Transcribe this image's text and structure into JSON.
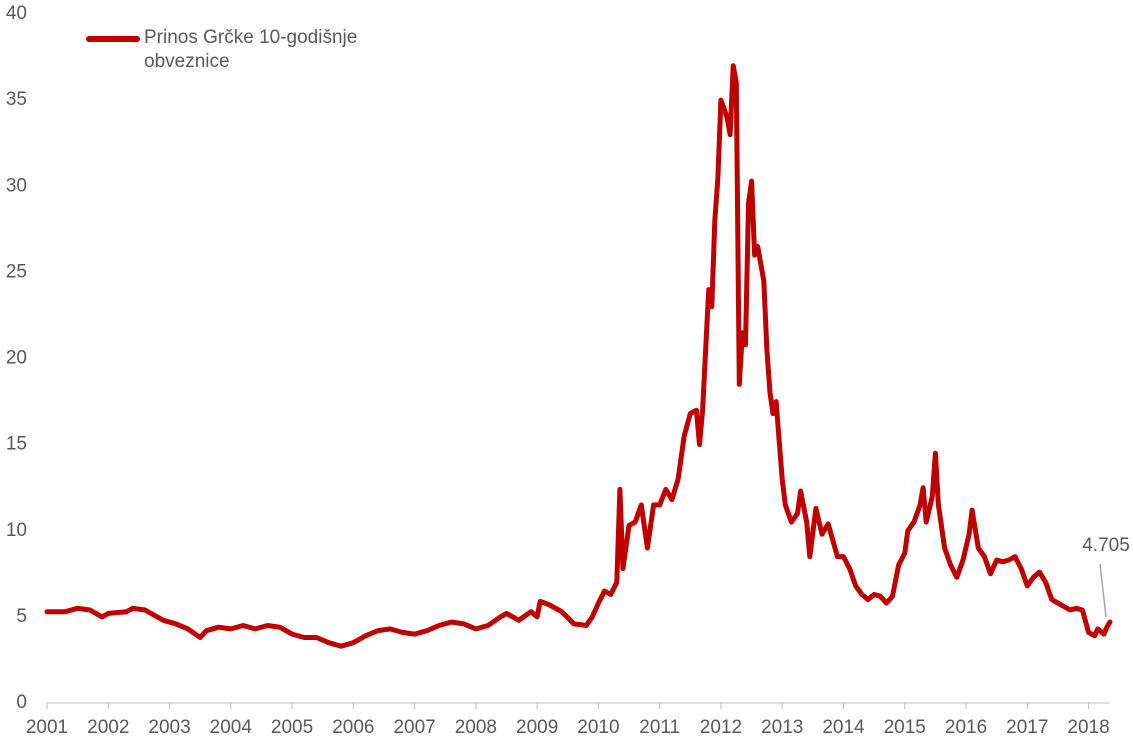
{
  "chart_data": {
    "type": "line",
    "legend": "top-left",
    "annotation": "4.705",
    "xlim": [
      2001,
      2018.35
    ],
    "xticks": [
      2001,
      2002,
      2003,
      2004,
      2005,
      2006,
      2007,
      2008,
      2009,
      2010,
      2011,
      2012,
      2013,
      2014,
      2015,
      2016,
      2017,
      2018
    ],
    "ylim": [
      0,
      40
    ],
    "yticks": [
      0,
      5,
      10,
      15,
      20,
      25,
      30,
      35,
      40
    ],
    "grid": false,
    "x": [
      2001.0,
      2001.3,
      2001.5,
      2001.7,
      2001.9,
      2002.0,
      2002.3,
      2002.4,
      2002.6,
      2002.8,
      2002.9,
      2003.1,
      2003.3,
      2003.5,
      2003.6,
      2003.8,
      2004.0,
      2004.2,
      2004.4,
      2004.6,
      2004.8,
      2005.0,
      2005.2,
      2005.4,
      2005.6,
      2005.8,
      2006.0,
      2006.2,
      2006.4,
      2006.6,
      2006.8,
      2007.0,
      2007.2,
      2007.4,
      2007.6,
      2007.8,
      2008.0,
      2008.2,
      2008.4,
      2008.5,
      2008.7,
      2008.9,
      2009.0,
      2009.05,
      2009.2,
      2009.4,
      2009.6,
      2009.8,
      2009.9,
      2010.0,
      2010.1,
      2010.2,
      2010.3,
      2010.35,
      2010.4,
      2010.5,
      2010.6,
      2010.7,
      2010.8,
      2010.9,
      2011.0,
      2011.1,
      2011.2,
      2011.3,
      2011.4,
      2011.5,
      2011.6,
      2011.65,
      2011.7,
      2011.8,
      2011.85,
      2011.9,
      2011.95,
      2012.0,
      2012.1,
      2012.15,
      2012.2,
      2012.25,
      2012.3,
      2012.35,
      2012.4,
      2012.45,
      2012.5,
      2012.55,
      2012.6,
      2012.7,
      2012.75,
      2012.8,
      2012.85,
      2012.9,
      2013.0,
      2013.05,
      2013.15,
      2013.25,
      2013.3,
      2013.4,
      2013.45,
      2013.55,
      2013.65,
      2013.75,
      2013.9,
      2014.0,
      2014.1,
      2014.2,
      2014.3,
      2014.4,
      2014.5,
      2014.6,
      2014.7,
      2014.8,
      2014.9,
      2015.0,
      2015.05,
      2015.15,
      2015.25,
      2015.3,
      2015.35,
      2015.45,
      2015.5,
      2015.55,
      2015.65,
      2015.75,
      2015.85,
      2015.95,
      2016.05,
      2016.1,
      2016.2,
      2016.3,
      2016.4,
      2016.5,
      2016.6,
      2016.7,
      2016.8,
      2016.9,
      2017.0,
      2017.1,
      2017.2,
      2017.3,
      2017.4,
      2017.5,
      2017.7,
      2017.8,
      2017.9,
      2018.0,
      2018.1,
      2018.15,
      2018.25,
      2018.3,
      2018.35
    ],
    "series": [
      {
        "name": "Prinos Grčke 10-godišnje obveznice",
        "color": "#c00000",
        "values": [
          5.3,
          5.3,
          5.5,
          5.4,
          5.0,
          5.2,
          5.3,
          5.5,
          5.4,
          5.0,
          4.8,
          4.6,
          4.3,
          3.8,
          4.2,
          4.4,
          4.3,
          4.5,
          4.3,
          4.5,
          4.4,
          4.0,
          3.8,
          3.8,
          3.5,
          3.3,
          3.5,
          3.9,
          4.2,
          4.3,
          4.1,
          4.0,
          4.2,
          4.5,
          4.7,
          4.6,
          4.3,
          4.5,
          5.0,
          5.2,
          4.8,
          5.3,
          5.0,
          5.9,
          5.7,
          5.3,
          4.6,
          4.5,
          5.0,
          5.8,
          6.5,
          6.3,
          7.0,
          12.4,
          7.8,
          10.3,
          10.5,
          11.5,
          9.0,
          11.5,
          11.5,
          12.4,
          11.8,
          13.0,
          15.5,
          16.8,
          17.0,
          15.0,
          17.0,
          24.0,
          23.0,
          28.0,
          30.5,
          35.0,
          34.0,
          33.0,
          37.0,
          36.0,
          18.5,
          21.5,
          20.8,
          29.0,
          30.3,
          26.0,
          26.5,
          24.5,
          20.5,
          18.0,
          16.8,
          17.5,
          13.0,
          11.5,
          10.5,
          11.0,
          12.3,
          10.5,
          8.5,
          11.3,
          9.8,
          10.4,
          8.5,
          8.5,
          7.8,
          6.8,
          6.3,
          6.0,
          6.3,
          6.2,
          5.8,
          6.2,
          8.0,
          8.7,
          10.0,
          10.5,
          11.5,
          12.5,
          10.5,
          12.0,
          14.5,
          11.5,
          9.0,
          8.0,
          7.3,
          8.3,
          9.8,
          11.2,
          9.0,
          8.5,
          7.5,
          8.3,
          8.2,
          8.3,
          8.5,
          7.8,
          6.8,
          7.3,
          7.6,
          7.0,
          6.0,
          5.8,
          5.4,
          5.5,
          5.4,
          4.1,
          3.9,
          4.3,
          4.0,
          4.4,
          4.705
        ]
      }
    ]
  }
}
